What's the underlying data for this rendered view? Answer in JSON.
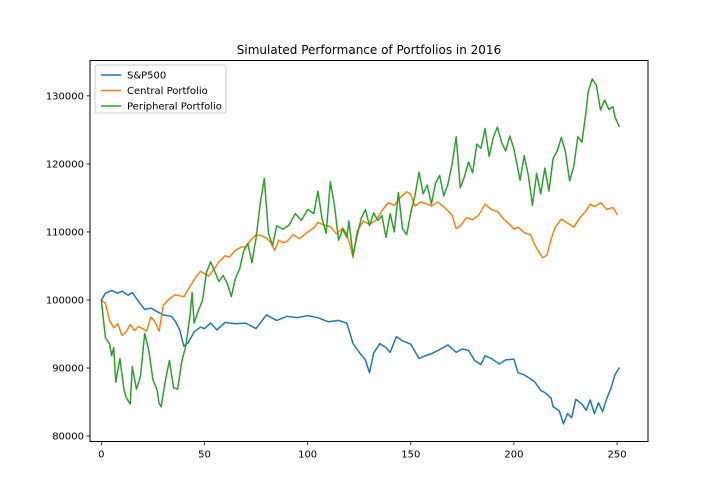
{
  "chart_data": {
    "type": "line",
    "title": "Simulated Performance of Portfolios in 2016",
    "xlabel": "",
    "ylabel": "",
    "xlim": [
      -5.5,
      265
    ],
    "ylim": [
      79200,
      135200
    ],
    "x_ticks": [
      0,
      50,
      100,
      150,
      200,
      250
    ],
    "y_ticks": [
      80000,
      90000,
      100000,
      110000,
      120000,
      130000
    ],
    "x_tick_labels": [
      "0",
      "50",
      "100",
      "150",
      "200",
      "250"
    ],
    "y_tick_labels": [
      "80000",
      "90000",
      "100000",
      "110000",
      "120000",
      "130000"
    ],
    "grid": false,
    "legend_position": "top-left",
    "series": [
      {
        "name": "S&P500",
        "color": "#1f77b4",
        "points": [
          [
            0,
            100000
          ],
          [
            2,
            101000
          ],
          [
            5,
            101400
          ],
          [
            8,
            101000
          ],
          [
            10,
            101300
          ],
          [
            13,
            100700
          ],
          [
            15,
            101100
          ],
          [
            18,
            99800
          ],
          [
            21,
            98600
          ],
          [
            24,
            98800
          ],
          [
            27,
            98300
          ],
          [
            30,
            97800
          ],
          [
            34,
            97600
          ],
          [
            36,
            96800
          ],
          [
            38,
            95600
          ],
          [
            40,
            93200
          ],
          [
            42,
            93700
          ],
          [
            45,
            95300
          ],
          [
            48,
            96000
          ],
          [
            50,
            95800
          ],
          [
            53,
            96600
          ],
          [
            56,
            95600
          ],
          [
            60,
            96700
          ],
          [
            65,
            96500
          ],
          [
            70,
            96600
          ],
          [
            75,
            95800
          ],
          [
            80,
            97800
          ],
          [
            85,
            97000
          ],
          [
            90,
            97600
          ],
          [
            95,
            97400
          ],
          [
            100,
            97700
          ],
          [
            105,
            97400
          ],
          [
            110,
            96800
          ],
          [
            115,
            97000
          ],
          [
            119,
            96600
          ],
          [
            122,
            93600
          ],
          [
            125,
            92300
          ],
          [
            128,
            91200
          ],
          [
            130,
            89300
          ],
          [
            132,
            92200
          ],
          [
            135,
            93600
          ],
          [
            138,
            93000
          ],
          [
            140,
            92300
          ],
          [
            143,
            94600
          ],
          [
            146,
            94000
          ],
          [
            150,
            93500
          ],
          [
            154,
            91400
          ],
          [
            157,
            91800
          ],
          [
            160,
            92100
          ],
          [
            164,
            92700
          ],
          [
            168,
            93400
          ],
          [
            172,
            92300
          ],
          [
            175,
            92800
          ],
          [
            178,
            92600
          ],
          [
            181,
            91100
          ],
          [
            184,
            90500
          ],
          [
            186,
            91800
          ],
          [
            189,
            91400
          ],
          [
            193,
            90600
          ],
          [
            196,
            91200
          ],
          [
            200,
            91300
          ],
          [
            202,
            89300
          ],
          [
            205,
            89000
          ],
          [
            210,
            88000
          ],
          [
            213,
            86700
          ],
          [
            215,
            86400
          ],
          [
            218,
            85600
          ],
          [
            219,
            84300
          ],
          [
            222,
            83700
          ],
          [
            224,
            81800
          ],
          [
            226,
            83300
          ],
          [
            228,
            82700
          ],
          [
            230,
            85400
          ],
          [
            233,
            84700
          ],
          [
            235,
            83800
          ],
          [
            237,
            85300
          ],
          [
            239,
            83300
          ],
          [
            241,
            84900
          ],
          [
            243,
            83600
          ],
          [
            245,
            85500
          ],
          [
            247,
            87000
          ],
          [
            249,
            89000
          ],
          [
            251,
            90000
          ]
        ]
      },
      {
        "name": "Central Portfolio",
        "color": "#ff7f0e",
        "points": [
          [
            0,
            100000
          ],
          [
            2,
            99500
          ],
          [
            4,
            97000
          ],
          [
            6,
            95900
          ],
          [
            8,
            96500
          ],
          [
            10,
            94800
          ],
          [
            12,
            95300
          ],
          [
            14,
            96400
          ],
          [
            16,
            95500
          ],
          [
            18,
            96100
          ],
          [
            20,
            95800
          ],
          [
            22,
            95400
          ],
          [
            24,
            97500
          ],
          [
            26,
            96800
          ],
          [
            28,
            95400
          ],
          [
            30,
            99200
          ],
          [
            33,
            100200
          ],
          [
            36,
            100800
          ],
          [
            38,
            100600
          ],
          [
            40,
            100500
          ],
          [
            42,
            101500
          ],
          [
            45,
            103000
          ],
          [
            48,
            104200
          ],
          [
            50,
            103900
          ],
          [
            52,
            103500
          ],
          [
            55,
            104700
          ],
          [
            57,
            105600
          ],
          [
            60,
            106500
          ],
          [
            62,
            106300
          ],
          [
            65,
            107300
          ],
          [
            68,
            107800
          ],
          [
            70,
            107800
          ],
          [
            73,
            109000
          ],
          [
            75,
            109600
          ],
          [
            78,
            109400
          ],
          [
            80,
            109100
          ],
          [
            82,
            108500
          ],
          [
            84,
            107300
          ],
          [
            86,
            108800
          ],
          [
            88,
            108400
          ],
          [
            90,
            108600
          ],
          [
            93,
            109600
          ],
          [
            96,
            109000
          ],
          [
            100,
            110000
          ],
          [
            103,
            110600
          ],
          [
            105,
            111400
          ],
          [
            108,
            111000
          ],
          [
            111,
            110800
          ],
          [
            114,
            109700
          ],
          [
            117,
            110600
          ],
          [
            119,
            109700
          ],
          [
            121,
            107600
          ],
          [
            122,
            106200
          ],
          [
            124,
            110100
          ],
          [
            127,
            111600
          ],
          [
            130,
            111100
          ],
          [
            133,
            111700
          ],
          [
            136,
            113100
          ],
          [
            139,
            114300
          ],
          [
            142,
            113900
          ],
          [
            145,
            115100
          ],
          [
            148,
            115900
          ],
          [
            150,
            115500
          ],
          [
            152,
            113800
          ],
          [
            155,
            114400
          ],
          [
            158,
            114100
          ],
          [
            160,
            113800
          ],
          [
            163,
            114400
          ],
          [
            166,
            113700
          ],
          [
            170,
            112500
          ],
          [
            172,
            110500
          ],
          [
            174,
            110900
          ],
          [
            177,
            112100
          ],
          [
            180,
            111800
          ],
          [
            183,
            112500
          ],
          [
            186,
            114100
          ],
          [
            189,
            113300
          ],
          [
            192,
            113000
          ],
          [
            195,
            111900
          ],
          [
            198,
            111100
          ],
          [
            200,
            110400
          ],
          [
            202,
            110700
          ],
          [
            205,
            109900
          ],
          [
            208,
            109600
          ],
          [
            210,
            108200
          ],
          [
            212,
            107100
          ],
          [
            214,
            106200
          ],
          [
            216,
            106600
          ],
          [
            218,
            108900
          ],
          [
            220,
            110700
          ],
          [
            223,
            111900
          ],
          [
            226,
            111300
          ],
          [
            229,
            110700
          ],
          [
            232,
            112100
          ],
          [
            235,
            113100
          ],
          [
            237,
            114100
          ],
          [
            239,
            113700
          ],
          [
            242,
            114300
          ],
          [
            245,
            113300
          ],
          [
            248,
            113600
          ],
          [
            250,
            112600
          ]
        ]
      },
      {
        "name": "Peripheral Portfolio",
        "color": "#2ca02c",
        "points": [
          [
            0,
            100000
          ],
          [
            2,
            94400
          ],
          [
            4,
            93600
          ],
          [
            5,
            91800
          ],
          [
            6,
            93000
          ],
          [
            7,
            87900
          ],
          [
            9,
            91400
          ],
          [
            11,
            86800
          ],
          [
            12,
            85700
          ],
          [
            14,
            84700
          ],
          [
            15,
            90200
          ],
          [
            17,
            86900
          ],
          [
            19,
            88800
          ],
          [
            21,
            95100
          ],
          [
            23,
            92600
          ],
          [
            25,
            88300
          ],
          [
            27,
            86800
          ],
          [
            28,
            84800
          ],
          [
            29,
            84300
          ],
          [
            31,
            88100
          ],
          [
            33,
            91100
          ],
          [
            35,
            87100
          ],
          [
            37,
            86900
          ],
          [
            39,
            91000
          ],
          [
            41,
            93300
          ],
          [
            43,
            97800
          ],
          [
            44,
            101100
          ],
          [
            45,
            96600
          ],
          [
            47,
            98400
          ],
          [
            49,
            99900
          ],
          [
            51,
            104100
          ],
          [
            53,
            105600
          ],
          [
            55,
            104200
          ],
          [
            57,
            102700
          ],
          [
            59,
            103600
          ],
          [
            61,
            102500
          ],
          [
            63,
            100500
          ],
          [
            65,
            103200
          ],
          [
            67,
            104500
          ],
          [
            69,
            107200
          ],
          [
            71,
            108300
          ],
          [
            73,
            105500
          ],
          [
            75,
            109100
          ],
          [
            77,
            114100
          ],
          [
            79,
            117900
          ],
          [
            81,
            109800
          ],
          [
            83,
            108000
          ],
          [
            85,
            110900
          ],
          [
            88,
            110400
          ],
          [
            91,
            111000
          ],
          [
            94,
            112700
          ],
          [
            97,
            111700
          ],
          [
            100,
            113300
          ],
          [
            103,
            112700
          ],
          [
            105,
            116000
          ],
          [
            107,
            111900
          ],
          [
            109,
            109800
          ],
          [
            111,
            117400
          ],
          [
            113,
            113900
          ],
          [
            115,
            108800
          ],
          [
            117,
            110400
          ],
          [
            119,
            109200
          ],
          [
            120,
            111600
          ],
          [
            122,
            106600
          ],
          [
            124,
            109500
          ],
          [
            126,
            112000
          ],
          [
            128,
            113300
          ],
          [
            130,
            110900
          ],
          [
            132,
            112800
          ],
          [
            134,
            111700
          ],
          [
            136,
            112400
          ],
          [
            138,
            109200
          ],
          [
            140,
            112700
          ],
          [
            142,
            110000
          ],
          [
            144,
            115800
          ],
          [
            146,
            110500
          ],
          [
            148,
            109600
          ],
          [
            150,
            112800
          ],
          [
            152,
            115300
          ],
          [
            154,
            118800
          ],
          [
            156,
            115600
          ],
          [
            158,
            116900
          ],
          [
            160,
            114100
          ],
          [
            162,
            117200
          ],
          [
            164,
            118300
          ],
          [
            166,
            115300
          ],
          [
            168,
            117000
          ],
          [
            170,
            119900
          ],
          [
            172,
            124000
          ],
          [
            174,
            116500
          ],
          [
            176,
            118100
          ],
          [
            178,
            120300
          ],
          [
            180,
            118700
          ],
          [
            182,
            122900
          ],
          [
            184,
            122300
          ],
          [
            186,
            125200
          ],
          [
            188,
            121100
          ],
          [
            190,
            123900
          ],
          [
            192,
            125400
          ],
          [
            194,
            123200
          ],
          [
            196,
            121900
          ],
          [
            198,
            124100
          ],
          [
            200,
            122200
          ],
          [
            203,
            117600
          ],
          [
            205,
            121200
          ],
          [
            207,
            118300
          ],
          [
            209,
            113900
          ],
          [
            211,
            118600
          ],
          [
            213,
            115600
          ],
          [
            215,
            119400
          ],
          [
            217,
            116000
          ],
          [
            219,
            120800
          ],
          [
            221,
            121900
          ],
          [
            223,
            123900
          ],
          [
            225,
            121700
          ],
          [
            227,
            117500
          ],
          [
            229,
            119600
          ],
          [
            231,
            124000
          ],
          [
            233,
            123200
          ],
          [
            235,
            127800
          ],
          [
            236,
            130600
          ],
          [
            238,
            132500
          ],
          [
            240,
            131500
          ],
          [
            242,
            127900
          ],
          [
            244,
            129400
          ],
          [
            246,
            128000
          ],
          [
            248,
            128400
          ],
          [
            249,
            126900
          ],
          [
            251,
            125500
          ]
        ]
      }
    ]
  }
}
